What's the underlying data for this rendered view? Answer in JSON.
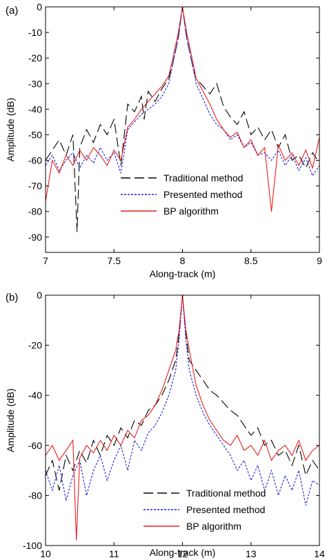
{
  "chart_data": [
    {
      "panel_label": "(a)",
      "type": "line",
      "xlabel": "Along-track (m)",
      "ylabel": "Amplitude (dB)",
      "xlim": [
        7,
        9
      ],
      "ylim": [
        -96,
        0
      ],
      "xticks": [
        7,
        7.5,
        8,
        8.5,
        9
      ],
      "xtick_labels": [
        "7",
        "7.5",
        "8",
        "8.5",
        "9"
      ],
      "yticks": [
        0,
        -10,
        -20,
        -30,
        -40,
        -50,
        -60,
        -70,
        -80,
        -90
      ],
      "ytick_labels": [
        "0",
        "-10",
        "-20",
        "-30",
        "-40",
        "-50",
        "-60",
        "-70",
        "-80",
        "-90"
      ],
      "grid": false,
      "legend_position": "bottom-right",
      "series": [
        {
          "name": "Traditional method",
          "color": "#000000",
          "style": "long-dash",
          "x": [
            7.0,
            7.05,
            7.1,
            7.15,
            7.2,
            7.23,
            7.25,
            7.3,
            7.35,
            7.4,
            7.45,
            7.5,
            7.55,
            7.6,
            7.65,
            7.7,
            7.72,
            7.75,
            7.8,
            7.85,
            7.9,
            7.93,
            7.97,
            8.0,
            8.03,
            8.07,
            8.1,
            8.15,
            8.2,
            8.25,
            8.3,
            8.35,
            8.4,
            8.45,
            8.5,
            8.55,
            8.6,
            8.65,
            8.7,
            8.75,
            8.8,
            8.85,
            8.9,
            8.95,
            9.0
          ],
          "y": [
            -60,
            -56,
            -52,
            -58,
            -50,
            -88,
            -55,
            -48,
            -53,
            -46,
            -50,
            -44,
            -62,
            -38,
            -41,
            -35,
            -44,
            -33,
            -37,
            -32,
            -28,
            -22,
            -12,
            0,
            -12,
            -22,
            -28,
            -31,
            -34,
            -30,
            -39,
            -43,
            -46,
            -41,
            -50,
            -47,
            -52,
            -48,
            -55,
            -50,
            -60,
            -58,
            -63,
            -57,
            -61
          ]
        },
        {
          "name": "Presented method",
          "color": "#1f1fd6",
          "style": "dotted",
          "x": [
            7.0,
            7.05,
            7.1,
            7.15,
            7.2,
            7.25,
            7.3,
            7.35,
            7.4,
            7.45,
            7.5,
            7.55,
            7.6,
            7.65,
            7.7,
            7.75,
            7.8,
            7.85,
            7.9,
            7.93,
            7.97,
            8.0,
            8.03,
            8.07,
            8.1,
            8.15,
            8.2,
            8.25,
            8.3,
            8.35,
            8.4,
            8.45,
            8.5,
            8.55,
            8.6,
            8.65,
            8.7,
            8.75,
            8.8,
            8.85,
            8.9,
            8.95,
            9.0
          ],
          "y": [
            -62,
            -58,
            -64,
            -60,
            -57,
            -63,
            -58,
            -61,
            -55,
            -60,
            -57,
            -65,
            -48,
            -45,
            -42,
            -40,
            -38,
            -35,
            -30,
            -22,
            -12,
            0,
            -12,
            -22,
            -30,
            -36,
            -42,
            -46,
            -48,
            -52,
            -50,
            -55,
            -53,
            -58,
            -57,
            -60,
            -56,
            -62,
            -58,
            -64,
            -59,
            -66,
            -62
          ]
        },
        {
          "name": "BP algorithm",
          "color": "#e51d1d",
          "style": "solid",
          "x": [
            7.0,
            7.05,
            7.1,
            7.15,
            7.2,
            7.25,
            7.3,
            7.35,
            7.4,
            7.45,
            7.5,
            7.55,
            7.6,
            7.65,
            7.7,
            7.75,
            7.8,
            7.85,
            7.9,
            7.93,
            7.97,
            8.0,
            8.03,
            8.07,
            8.1,
            8.15,
            8.2,
            8.25,
            8.3,
            8.35,
            8.4,
            8.45,
            8.5,
            8.55,
            8.6,
            8.65,
            8.7,
            8.75,
            8.8,
            8.85,
            8.9,
            8.95,
            9.0
          ],
          "y": [
            -76,
            -60,
            -65,
            -58,
            -62,
            -56,
            -60,
            -55,
            -58,
            -62,
            -56,
            -60,
            -47,
            -44,
            -40,
            -37,
            -34,
            -31,
            -27,
            -20,
            -10,
            0,
            -10,
            -20,
            -28,
            -33,
            -38,
            -44,
            -48,
            -51,
            -49,
            -55,
            -52,
            -58,
            -55,
            -80,
            -54,
            -60,
            -57,
            -62,
            -56,
            -63,
            -51
          ]
        }
      ]
    },
    {
      "panel_label": "(b)",
      "type": "line",
      "xlabel": "Along-track (m)",
      "ylabel": "Amplitude (dB)",
      "xlim": [
        10,
        14
      ],
      "ylim": [
        -100,
        0
      ],
      "xticks": [
        10,
        11,
        12,
        13,
        14
      ],
      "xtick_labels": [
        "10",
        "11",
        "12",
        "13",
        "14"
      ],
      "yticks": [
        0,
        -20,
        -40,
        -60,
        -80,
        -100
      ],
      "ytick_labels": [
        "0",
        "-20",
        "-40",
        "-60",
        "-80",
        "-100"
      ],
      "grid": false,
      "legend_position": "bottom-right",
      "series": [
        {
          "name": "Traditional method",
          "color": "#000000",
          "style": "long-dash",
          "x": [
            10.0,
            10.1,
            10.2,
            10.3,
            10.4,
            10.5,
            10.6,
            10.7,
            10.8,
            10.9,
            11.0,
            11.1,
            11.2,
            11.3,
            11.4,
            11.5,
            11.6,
            11.7,
            11.8,
            11.9,
            11.95,
            12.0,
            12.05,
            12.1,
            12.2,
            12.3,
            12.4,
            12.5,
            12.6,
            12.7,
            12.8,
            12.9,
            13.0,
            13.1,
            13.2,
            13.3,
            13.4,
            13.5,
            13.6,
            13.7,
            13.8,
            13.9,
            14.0
          ],
          "y": [
            -72,
            -66,
            -78,
            -64,
            -70,
            -62,
            -67,
            -58,
            -64,
            -56,
            -60,
            -53,
            -57,
            -50,
            -52,
            -46,
            -44,
            -40,
            -34,
            -26,
            -16,
            0,
            -16,
            -26,
            -30,
            -34,
            -38,
            -40,
            -43,
            -46,
            -48,
            -52,
            -56,
            -53,
            -60,
            -58,
            -64,
            -62,
            -68,
            -60,
            -72,
            -66,
            -70
          ]
        },
        {
          "name": "Presented method",
          "color": "#1f1fd6",
          "style": "dotted",
          "x": [
            10.0,
            10.1,
            10.2,
            10.3,
            10.4,
            10.5,
            10.6,
            10.7,
            10.8,
            10.9,
            11.0,
            11.1,
            11.2,
            11.3,
            11.4,
            11.5,
            11.6,
            11.7,
            11.8,
            11.9,
            11.95,
            12.0,
            12.05,
            12.1,
            12.2,
            12.3,
            12.4,
            12.5,
            12.6,
            12.7,
            12.8,
            12.9,
            13.0,
            13.1,
            13.2,
            13.3,
            13.4,
            13.5,
            13.6,
            13.7,
            13.8,
            13.9,
            14.0
          ],
          "y": [
            -70,
            -78,
            -68,
            -82,
            -72,
            -66,
            -80,
            -70,
            -64,
            -74,
            -66,
            -60,
            -70,
            -58,
            -62,
            -55,
            -52,
            -47,
            -40,
            -30,
            -18,
            0,
            -18,
            -30,
            -40,
            -47,
            -52,
            -56,
            -60,
            -64,
            -70,
            -66,
            -74,
            -68,
            -78,
            -70,
            -80,
            -72,
            -78,
            -70,
            -84,
            -74,
            -76
          ]
        },
        {
          "name": "BP algorithm",
          "color": "#e51d1d",
          "style": "solid",
          "x": [
            10.0,
            10.1,
            10.2,
            10.3,
            10.4,
            10.45,
            10.5,
            10.6,
            10.7,
            10.8,
            10.9,
            11.0,
            11.1,
            11.2,
            11.3,
            11.4,
            11.5,
            11.6,
            11.7,
            11.8,
            11.9,
            11.95,
            12.0,
            12.05,
            12.1,
            12.2,
            12.3,
            12.4,
            12.5,
            12.6,
            12.7,
            12.8,
            12.9,
            13.0,
            13.1,
            13.2,
            13.3,
            13.4,
            13.5,
            13.6,
            13.7,
            13.8,
            13.9,
            14.0
          ],
          "y": [
            -64,
            -60,
            -66,
            -62,
            -58,
            -98,
            -65,
            -60,
            -63,
            -58,
            -62,
            -56,
            -60,
            -54,
            -57,
            -50,
            -48,
            -44,
            -38,
            -30,
            -22,
            -14,
            0,
            -14,
            -22,
            -36,
            -44,
            -50,
            -54,
            -58,
            -60,
            -56,
            -62,
            -60,
            -64,
            -58,
            -66,
            -62,
            -60,
            -64,
            -58,
            -66,
            -62,
            -60
          ]
        }
      ]
    }
  ]
}
